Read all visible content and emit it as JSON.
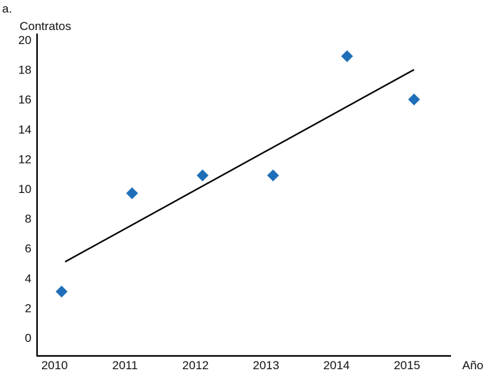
{
  "panel_label": "a.",
  "chart_data": {
    "type": "scatter",
    "title": "",
    "xlabel": "Año",
    "ylabel": "Contratos",
    "xlim": [
      2010,
      2015
    ],
    "ylim": [
      0,
      20
    ],
    "x_ticks": [
      "2010",
      "2011",
      "2012",
      "2013",
      "2014",
      "2015"
    ],
    "y_ticks": [
      "0",
      "2",
      "4",
      "6",
      "8",
      "10",
      "12",
      "14",
      "16",
      "18",
      "20"
    ],
    "grid": false,
    "legend": "none",
    "marker": "diamond",
    "marker_color": "#1f6fb8",
    "points": [
      {
        "x": 2010.1,
        "y": 3.1
      },
      {
        "x": 2011.1,
        "y": 9.7
      },
      {
        "x": 2012.1,
        "y": 10.9
      },
      {
        "x": 2013.1,
        "y": 10.9
      },
      {
        "x": 2014.15,
        "y": 18.9
      },
      {
        "x": 2015.1,
        "y": 16.0
      }
    ],
    "trendline": {
      "x": [
        2010.15,
        2015.1
      ],
      "y": [
        5.1,
        18.0
      ],
      "color": "#000000"
    }
  }
}
